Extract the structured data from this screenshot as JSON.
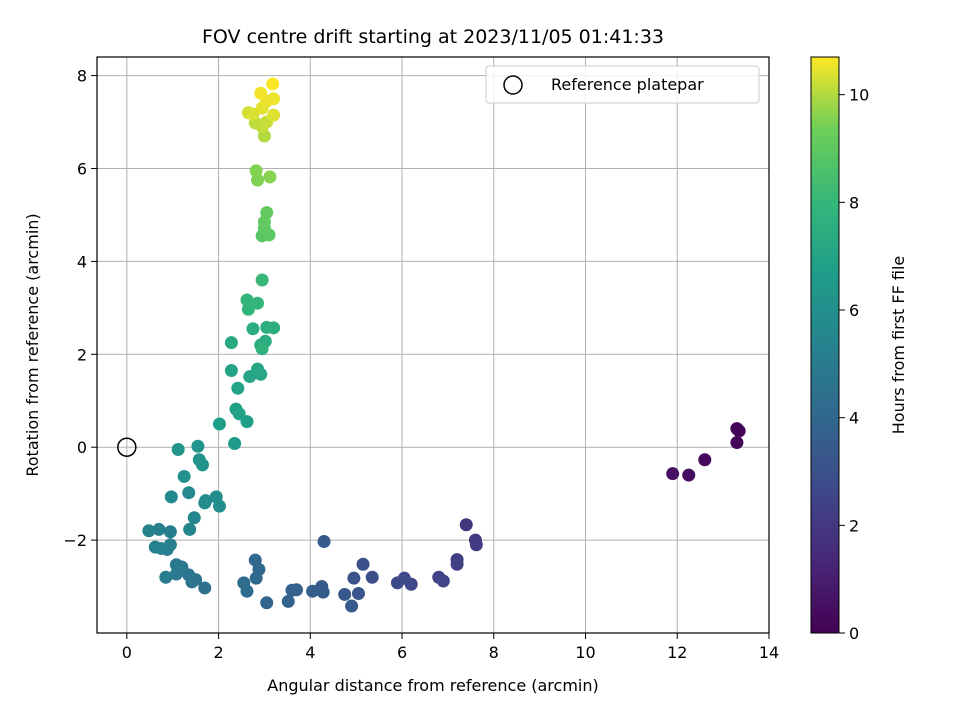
{
  "chart_data": {
    "type": "scatter",
    "title": "FOV centre drift starting at 2023/11/05 01:41:33",
    "xlabel": "Angular distance from reference (arcmin)",
    "ylabel": "Rotation from reference (arcmin)",
    "xlim": [
      -0.65,
      14
    ],
    "ylim": [
      -4.0,
      8.4
    ],
    "xticks": [
      0,
      2,
      4,
      6,
      8,
      10,
      12,
      14
    ],
    "yticks": [
      -2,
      0,
      2,
      4,
      6,
      8
    ],
    "grid": true,
    "legend": {
      "position": "top-right",
      "entries": [
        "Reference platepar"
      ]
    },
    "reference_point": {
      "x": 0,
      "y": 0,
      "label": "Reference platepar"
    },
    "colorbar": {
      "label": "Hours from first FF file",
      "colormap": "viridis",
      "range": [
        0,
        10.7
      ],
      "ticks": [
        0,
        2,
        4,
        6,
        8,
        10
      ]
    },
    "points": [
      {
        "x": 13.3,
        "y": 0.4,
        "c": 0.1
      },
      {
        "x": 13.35,
        "y": 0.35,
        "c": 0.15
      },
      {
        "x": 13.3,
        "y": 0.1,
        "c": 0.2
      },
      {
        "x": 12.6,
        "y": -0.27,
        "c": 0.3
      },
      {
        "x": 12.25,
        "y": -0.6,
        "c": 0.4
      },
      {
        "x": 11.9,
        "y": -0.57,
        "c": 0.5
      },
      {
        "x": 7.4,
        "y": -1.67,
        "c": 2.0
      },
      {
        "x": 7.6,
        "y": -2.0,
        "c": 2.1
      },
      {
        "x": 7.62,
        "y": -2.1,
        "c": 2.15
      },
      {
        "x": 7.2,
        "y": -2.42,
        "c": 2.25
      },
      {
        "x": 7.2,
        "y": -2.52,
        "c": 2.3
      },
      {
        "x": 6.8,
        "y": -2.8,
        "c": 2.4
      },
      {
        "x": 6.9,
        "y": -2.88,
        "c": 2.5
      },
      {
        "x": 6.2,
        "y": -2.95,
        "c": 2.6
      },
      {
        "x": 6.05,
        "y": -2.82,
        "c": 2.7
      },
      {
        "x": 5.9,
        "y": -2.92,
        "c": 2.8
      },
      {
        "x": 5.35,
        "y": -2.8,
        "c": 2.9
      },
      {
        "x": 5.15,
        "y": -2.52,
        "c": 3.0
      },
      {
        "x": 4.95,
        "y": -2.82,
        "c": 3.1
      },
      {
        "x": 5.05,
        "y": -3.15,
        "c": 3.2
      },
      {
        "x": 4.75,
        "y": -3.17,
        "c": 3.3
      },
      {
        "x": 4.9,
        "y": -3.42,
        "c": 3.35
      },
      {
        "x": 4.3,
        "y": -2.03,
        "c": 3.4
      },
      {
        "x": 4.25,
        "y": -3.0,
        "c": 3.5
      },
      {
        "x": 4.28,
        "y": -3.12,
        "c": 3.55
      },
      {
        "x": 4.05,
        "y": -3.1,
        "c": 3.6
      },
      {
        "x": 3.6,
        "y": -3.08,
        "c": 3.7
      },
      {
        "x": 3.7,
        "y": -3.07,
        "c": 3.75
      },
      {
        "x": 3.52,
        "y": -3.32,
        "c": 3.8
      },
      {
        "x": 3.05,
        "y": -3.35,
        "c": 3.9
      },
      {
        "x": 2.8,
        "y": -2.43,
        "c": 4.0
      },
      {
        "x": 2.88,
        "y": -2.63,
        "c": 4.05
      },
      {
        "x": 2.82,
        "y": -2.82,
        "c": 4.1
      },
      {
        "x": 2.55,
        "y": -2.92,
        "c": 4.2
      },
      {
        "x": 2.62,
        "y": -3.1,
        "c": 4.25
      },
      {
        "x": 1.7,
        "y": -3.03,
        "c": 4.5
      },
      {
        "x": 1.5,
        "y": -2.85,
        "c": 4.6
      },
      {
        "x": 1.42,
        "y": -2.9,
        "c": 4.65
      },
      {
        "x": 1.35,
        "y": -2.75,
        "c": 4.7
      },
      {
        "x": 1.2,
        "y": -2.58,
        "c": 4.8
      },
      {
        "x": 1.08,
        "y": -2.53,
        "c": 4.85
      },
      {
        "x": 1.08,
        "y": -2.73,
        "c": 4.9
      },
      {
        "x": 0.85,
        "y": -2.8,
        "c": 5.0
      },
      {
        "x": 0.88,
        "y": -2.2,
        "c": 5.1
      },
      {
        "x": 0.95,
        "y": -2.1,
        "c": 5.15
      },
      {
        "x": 0.95,
        "y": -1.82,
        "c": 5.2
      },
      {
        "x": 0.7,
        "y": -1.77,
        "c": 5.25
      },
      {
        "x": 0.62,
        "y": -2.15,
        "c": 5.3
      },
      {
        "x": 0.75,
        "y": -2.18,
        "c": 5.35
      },
      {
        "x": 0.48,
        "y": -1.8,
        "c": 5.4
      },
      {
        "x": 1.37,
        "y": -1.77,
        "c": 5.5
      },
      {
        "x": 1.47,
        "y": -1.52,
        "c": 5.6
      },
      {
        "x": 0.97,
        "y": -1.07,
        "c": 5.7
      },
      {
        "x": 1.35,
        "y": -0.98,
        "c": 5.75
      },
      {
        "x": 1.7,
        "y": -1.2,
        "c": 5.8
      },
      {
        "x": 1.72,
        "y": -1.15,
        "c": 5.85
      },
      {
        "x": 1.95,
        "y": -1.07,
        "c": 5.9
      },
      {
        "x": 2.02,
        "y": -1.27,
        "c": 5.95
      },
      {
        "x": 1.25,
        "y": -0.63,
        "c": 6.0
      },
      {
        "x": 1.58,
        "y": -0.27,
        "c": 6.1
      },
      {
        "x": 1.65,
        "y": -0.38,
        "c": 6.15
      },
      {
        "x": 1.12,
        "y": -0.05,
        "c": 6.2
      },
      {
        "x": 1.55,
        "y": 0.02,
        "c": 6.25
      },
      {
        "x": 2.35,
        "y": 0.08,
        "c": 6.6
      },
      {
        "x": 2.02,
        "y": 0.5,
        "c": 6.7
      },
      {
        "x": 2.62,
        "y": 0.55,
        "c": 6.75
      },
      {
        "x": 2.38,
        "y": 0.82,
        "c": 6.8
      },
      {
        "x": 2.45,
        "y": 0.72,
        "c": 6.85
      },
      {
        "x": 2.42,
        "y": 1.27,
        "c": 6.9
      },
      {
        "x": 2.28,
        "y": 1.65,
        "c": 7.0
      },
      {
        "x": 2.68,
        "y": 1.52,
        "c": 7.05
      },
      {
        "x": 2.92,
        "y": 1.57,
        "c": 7.1
      },
      {
        "x": 2.85,
        "y": 1.68,
        "c": 7.15
      },
      {
        "x": 2.28,
        "y": 2.25,
        "c": 7.3
      },
      {
        "x": 2.92,
        "y": 2.2,
        "c": 7.4
      },
      {
        "x": 3.02,
        "y": 2.28,
        "c": 7.45
      },
      {
        "x": 2.75,
        "y": 2.55,
        "c": 7.5
      },
      {
        "x": 3.05,
        "y": 2.58,
        "c": 7.55
      },
      {
        "x": 3.2,
        "y": 2.57,
        "c": 7.6
      },
      {
        "x": 2.95,
        "y": 2.12,
        "c": 7.65
      },
      {
        "x": 2.65,
        "y": 2.97,
        "c": 7.8
      },
      {
        "x": 2.85,
        "y": 3.1,
        "c": 7.9
      },
      {
        "x": 2.62,
        "y": 3.17,
        "c": 7.95
      },
      {
        "x": 2.95,
        "y": 3.6,
        "c": 8.1
      },
      {
        "x": 2.95,
        "y": 4.55,
        "c": 8.9
      },
      {
        "x": 3.1,
        "y": 4.57,
        "c": 8.95
      },
      {
        "x": 3.0,
        "y": 4.72,
        "c": 9.0
      },
      {
        "x": 3.0,
        "y": 4.85,
        "c": 9.05
      },
      {
        "x": 3.05,
        "y": 5.05,
        "c": 9.1
      },
      {
        "x": 2.85,
        "y": 5.75,
        "c": 9.5
      },
      {
        "x": 2.82,
        "y": 5.95,
        "c": 9.55
      },
      {
        "x": 3.12,
        "y": 5.82,
        "c": 9.6
      },
      {
        "x": 3.0,
        "y": 6.7,
        "c": 10.0
      },
      {
        "x": 2.8,
        "y": 6.98,
        "c": 10.1
      },
      {
        "x": 2.95,
        "y": 6.9,
        "c": 10.15
      },
      {
        "x": 3.05,
        "y": 7.0,
        "c": 10.2
      },
      {
        "x": 2.65,
        "y": 7.2,
        "c": 10.3
      },
      {
        "x": 2.75,
        "y": 7.17,
        "c": 10.35
      },
      {
        "x": 3.2,
        "y": 7.15,
        "c": 10.4
      },
      {
        "x": 2.95,
        "y": 7.3,
        "c": 10.45
      },
      {
        "x": 3.05,
        "y": 7.45,
        "c": 10.5
      },
      {
        "x": 3.2,
        "y": 7.5,
        "c": 10.55
      },
      {
        "x": 2.92,
        "y": 7.62,
        "c": 10.6
      },
      {
        "x": 3.18,
        "y": 7.82,
        "c": 10.7
      }
    ]
  }
}
